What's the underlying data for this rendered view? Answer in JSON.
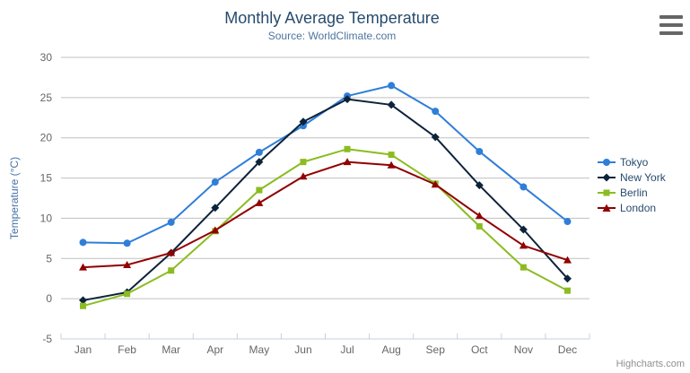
{
  "header": {
    "title": "Monthly Average Temperature",
    "subtitle": "Source: WorldClimate.com"
  },
  "credits": "Highcharts.com",
  "colors": {
    "title": "#274b6d",
    "subtitle": "#4d759e",
    "axis_title": "#4572a7",
    "axis_labels": "#666666",
    "grid_line": "#c0c0c0",
    "axis_line": "#c0d0e0",
    "legend_text": "#274b6d",
    "menu_icon": "#666666"
  },
  "chart_data": {
    "type": "line",
    "title": "Monthly Average Temperature",
    "subtitle": "Source: WorldClimate.com",
    "categories": [
      "Jan",
      "Feb",
      "Mar",
      "Apr",
      "May",
      "Jun",
      "Jul",
      "Aug",
      "Sep",
      "Oct",
      "Nov",
      "Dec"
    ],
    "series": [
      {
        "name": "Tokyo",
        "color": "#2f7ed8",
        "marker": "circle",
        "values": [
          7.0,
          6.9,
          9.5,
          14.5,
          18.2,
          21.5,
          25.2,
          26.5,
          23.3,
          18.3,
          13.9,
          9.6
        ]
      },
      {
        "name": "New York",
        "color": "#0d233a",
        "marker": "diamond",
        "values": [
          -0.2,
          0.8,
          5.7,
          11.3,
          17.0,
          22.0,
          24.8,
          24.1,
          20.1,
          14.1,
          8.6,
          2.5
        ]
      },
      {
        "name": "Berlin",
        "color": "#8bbc21",
        "marker": "square",
        "values": [
          -0.9,
          0.6,
          3.5,
          8.4,
          13.5,
          17.0,
          18.6,
          17.9,
          14.3,
          9.0,
          3.9,
          1.0
        ]
      },
      {
        "name": "London",
        "color": "#910000",
        "marker": "triangle",
        "values": [
          3.9,
          4.2,
          5.7,
          8.5,
          11.9,
          15.2,
          17.0,
          16.6,
          14.2,
          10.3,
          6.6,
          4.8
        ]
      }
    ],
    "xlabel": "",
    "ylabel": "Temperature (°C)",
    "ylim": [
      -5,
      30
    ],
    "ytick_step": 5,
    "grid": true,
    "legend_position": "right"
  }
}
